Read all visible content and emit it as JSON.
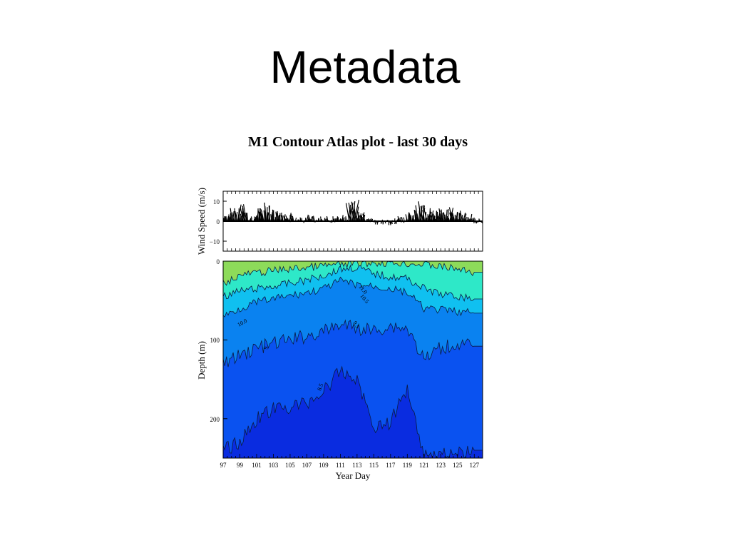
{
  "slide": {
    "title": "Metadata"
  },
  "chart_data": [
    {
      "type": "line",
      "title": "M1 Contour Atlas plot - last 30 days",
      "ylabel": "Wind Speed (m/s)",
      "xlabel": "",
      "xlim": [
        97,
        128
      ],
      "ylim": [
        -15,
        15
      ],
      "y_ticks": [
        "10",
        "0",
        "−10"
      ],
      "y_tick_values": [
        10,
        0,
        -10
      ],
      "description": "wind stick vectors",
      "series": [
        {
          "x": [
            97.5,
            98.5,
            99.5,
            100.5,
            101.5,
            102.5,
            103.5,
            104.5,
            105.5,
            106.5,
            107.5,
            108.5,
            109.5,
            110.5,
            111.5,
            112.5,
            113.5,
            114.5,
            115.5,
            116.5,
            117.5,
            118.5,
            119.5,
            120.5,
            121.5,
            122.5,
            123.5,
            124.5,
            125.5,
            126.5,
            127.5
          ],
          "values": [
            3,
            6,
            7,
            2,
            5,
            8,
            4,
            3,
            2,
            1,
            2,
            1,
            1,
            1,
            2,
            9,
            4,
            1,
            -1,
            -1,
            0,
            1,
            3,
            8,
            5,
            4,
            6,
            5,
            4,
            2,
            0
          ]
        }
      ]
    },
    {
      "type": "heatmap",
      "xlabel": "Year Day",
      "ylabel": "Depth (m)",
      "xlim": [
        97,
        128
      ],
      "ylim": [
        250,
        0
      ],
      "x_ticks": [
        "97",
        "99",
        "101",
        "103",
        "105",
        "107",
        "109",
        "111",
        "113",
        "115",
        "117",
        "119",
        "121",
        "123",
        "125",
        "127"
      ],
      "y_ticks": [
        "0",
        "100",
        "200"
      ],
      "contour_labels": [
        "11.0",
        "10.5",
        "10.0",
        "9.5",
        "9",
        "8.5"
      ],
      "x": [
        97,
        99,
        101,
        103,
        105,
        107,
        109,
        111,
        113,
        115,
        117,
        119,
        121,
        123,
        125,
        127
      ],
      "contour_depths": [
        {
          "level": "11.0",
          "depths": [
            28,
            18,
            15,
            12,
            10,
            8,
            6,
            4,
            3,
            2,
            2,
            3,
            4,
            7,
            10,
            14
          ]
        },
        {
          "level": "10.5",
          "depths": [
            45,
            38,
            35,
            32,
            28,
            24,
            18,
            10,
            8,
            16,
            20,
            22,
            35,
            42,
            45,
            48
          ]
        },
        {
          "level": "10.0",
          "depths": [
            70,
            60,
            52,
            48,
            44,
            40,
            35,
            25,
            30,
            32,
            35,
            40,
            60,
            62,
            64,
            66
          ]
        },
        {
          "level": "9.5",
          "depths": [
            130,
            120,
            110,
            105,
            100,
            95,
            90,
            80,
            85,
            88,
            82,
            85,
            125,
            110,
            105,
            108
          ]
        },
        {
          "level": "9",
          "depths": [
            240,
            230,
            200,
            188,
            185,
            180,
            165,
            140,
            150,
            210,
            205,
            160,
            245,
            245,
            245,
            240
          ]
        }
      ],
      "level_colors": [
        "#8ddb5a",
        "#2ee8c8",
        "#10c0f0",
        "#0a82f0",
        "#0a52f0",
        "#0a2ce0"
      ]
    }
  ]
}
